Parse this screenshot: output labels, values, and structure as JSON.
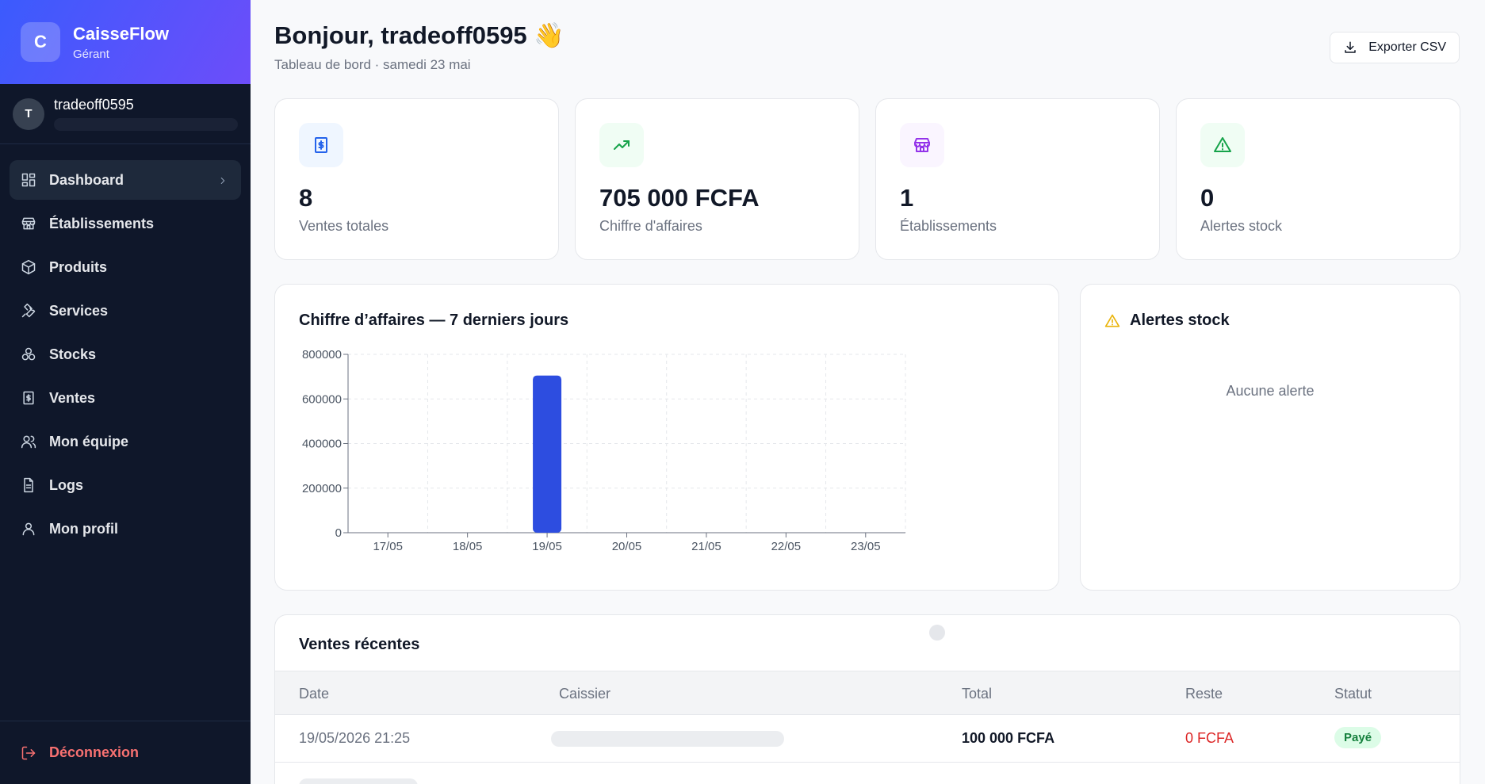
{
  "sidebar": {
    "brand": {
      "logo_letter": "C",
      "name": "CaisseFlow",
      "role": "Gérant"
    },
    "user": {
      "avatar_letter": "T",
      "name": "tradeoff0595"
    },
    "items": [
      {
        "label": "Dashboard",
        "icon": "dashboard-icon",
        "active": true
      },
      {
        "label": "Établissements",
        "icon": "store-icon"
      },
      {
        "label": "Produits",
        "icon": "package-icon"
      },
      {
        "label": "Services",
        "icon": "wrench-icon"
      },
      {
        "label": "Stocks",
        "icon": "boxes-icon"
      },
      {
        "label": "Ventes",
        "icon": "receipt-icon"
      },
      {
        "label": "Mon équipe",
        "icon": "users-icon"
      },
      {
        "label": "Logs",
        "icon": "file-text-icon"
      },
      {
        "label": "Mon profil",
        "icon": "user-icon"
      }
    ],
    "logout_label": "Déconnexion"
  },
  "header": {
    "greeting": "Bonjour, tradeoff0595",
    "greeting_emoji": "👋",
    "subtitle": "Tableau de bord · samedi 23 mai",
    "export_label": "Exporter CSV"
  },
  "stats": [
    {
      "value": "8",
      "label": "Ventes totales",
      "icon": "receipt-icon",
      "color": "#2563eb",
      "bg": "#eff6ff"
    },
    {
      "value": "705 000 FCFA",
      "label": "Chiffre d'affaires",
      "icon": "trending-up-icon",
      "color": "#16a34a",
      "bg": "#f0fdf4"
    },
    {
      "value": "1",
      "label": "Établissements",
      "icon": "store-icon",
      "color": "#9333ea",
      "bg": "#faf5ff"
    },
    {
      "value": "0",
      "label": "Alertes stock",
      "icon": "alert-triangle-icon",
      "color": "#16a34a",
      "bg": "#f0fdf4"
    }
  ],
  "chart_card": {
    "title": "Chiffre d’affaires — 7 derniers jours"
  },
  "chart_data": {
    "type": "bar",
    "categories": [
      "17/05",
      "18/05",
      "19/05",
      "20/05",
      "21/05",
      "22/05",
      "23/05"
    ],
    "values": [
      0,
      0,
      705000,
      0,
      0,
      0,
      0
    ],
    "yticks": [
      0,
      200000,
      400000,
      600000,
      800000
    ],
    "ylim": [
      0,
      800000
    ],
    "grid": true,
    "bar_color": "#2d4de0"
  },
  "alerts_card": {
    "title": "Alertes stock",
    "empty": "Aucune alerte"
  },
  "sales": {
    "title": "Ventes récentes",
    "columns": [
      "Date",
      "Caissier",
      "Total",
      "Reste",
      "Statut"
    ],
    "rows": [
      {
        "date": "19/05/2026 21:25",
        "total": "100 000 FCFA",
        "reste": "0 FCFA",
        "status": "Payé"
      }
    ]
  }
}
